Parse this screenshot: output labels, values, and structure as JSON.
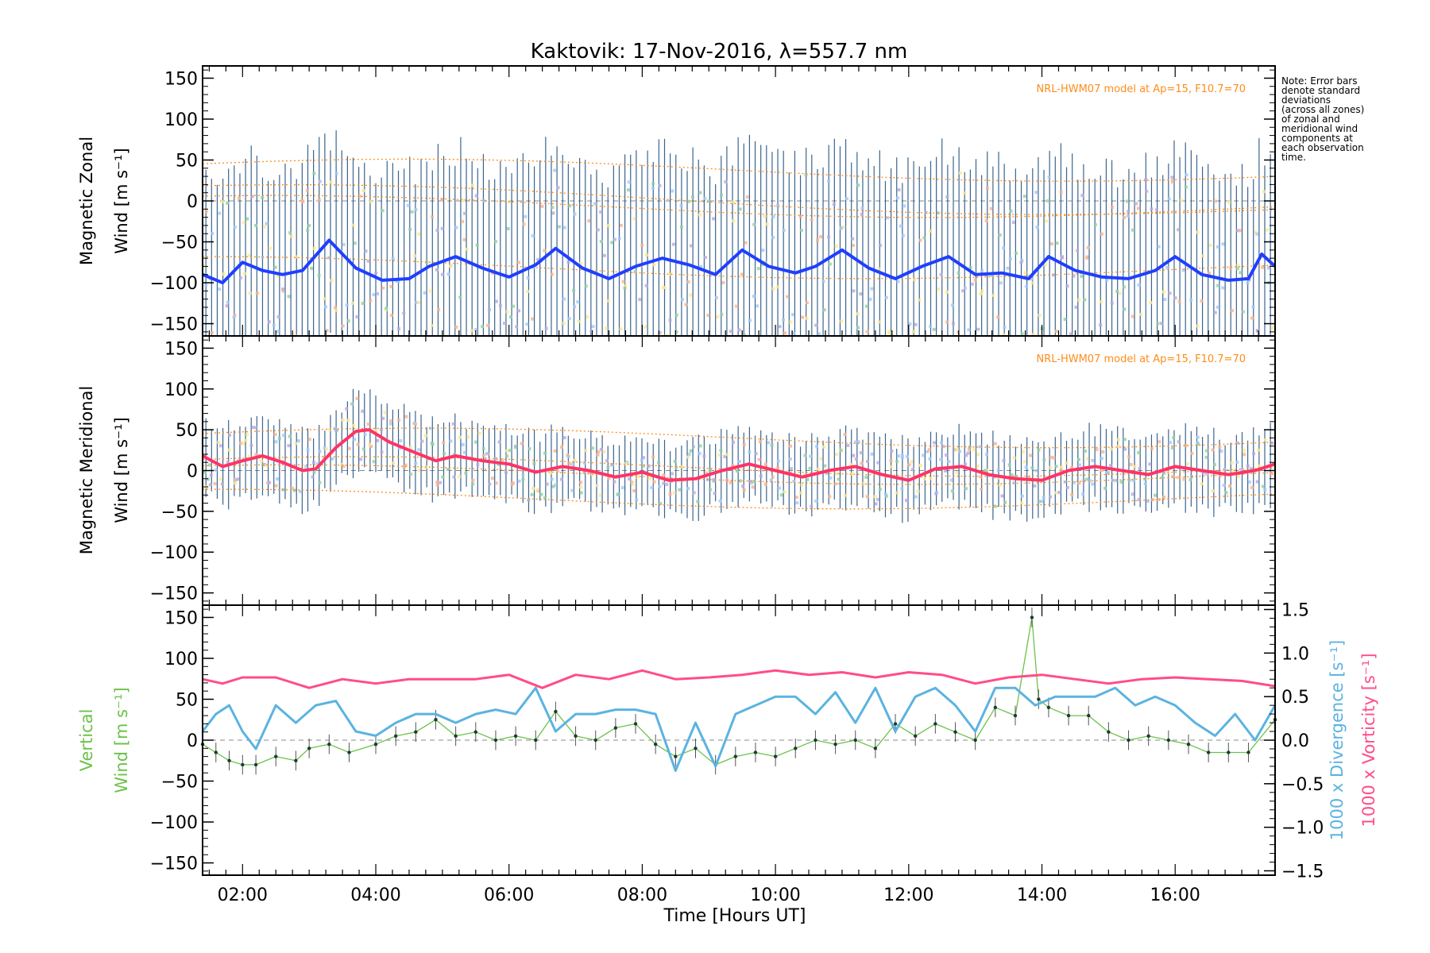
{
  "chart_data": [
    {
      "type": "line",
      "title": "Kaktovik: 17-Nov-2016, λ=557.7 nm",
      "panel": "zonal",
      "ylabel_line1": "Magnetic Zonal",
      "ylabel_line2": "Wind [m s⁻¹]",
      "ylim": [
        -165,
        165
      ],
      "xlim": [
        1.4,
        17.5
      ],
      "yticks": [
        150,
        100,
        50,
        0,
        -50,
        -100,
        -150
      ],
      "model_label": "NRL-HWM07 model at Ap=15, F10.7=70",
      "series": [
        {
          "color": "#1f3fff",
          "x": [
            1.4,
            1.7,
            2.0,
            2.3,
            2.6,
            2.9,
            3.3,
            3.7,
            4.1,
            4.5,
            4.8,
            5.2,
            5.6,
            6.0,
            6.4,
            6.7,
            7.1,
            7.5,
            7.9,
            8.3,
            8.7,
            9.1,
            9.5,
            9.9,
            10.3,
            10.6,
            11.0,
            11.4,
            11.8,
            12.2,
            12.6,
            13.0,
            13.4,
            13.8,
            14.1,
            14.5,
            14.9,
            15.3,
            15.7,
            16.0,
            16.4,
            16.8,
            17.1,
            17.3,
            17.5
          ],
          "y": [
            -90,
            -100,
            -75,
            -85,
            -90,
            -85,
            -48,
            -82,
            -97,
            -95,
            -80,
            -68,
            -82,
            -93,
            -78,
            -58,
            -82,
            -95,
            -80,
            -70,
            -78,
            -90,
            -60,
            -80,
            -88,
            -80,
            -60,
            -82,
            -95,
            -80,
            -68,
            -90,
            -88,
            -95,
            -68,
            -85,
            -93,
            -95,
            -85,
            -68,
            -90,
            -97,
            -95,
            -65,
            -80
          ]
        }
      ]
    },
    {
      "type": "line",
      "panel": "meridional",
      "ylabel_line1": "Magnetic Meridional",
      "ylabel_line2": "Wind [m s⁻¹]",
      "ylim": [
        -165,
        165
      ],
      "xlim": [
        1.4,
        17.5
      ],
      "yticks": [
        150,
        100,
        50,
        0,
        -50,
        -100,
        -150
      ],
      "model_label": "NRL-HWM07 model at Ap=15, F10.7=70",
      "series": [
        {
          "color": "#ff3366",
          "x": [
            1.4,
            1.7,
            2.0,
            2.3,
            2.6,
            2.9,
            3.1,
            3.4,
            3.7,
            3.9,
            4.2,
            4.5,
            4.9,
            5.2,
            5.6,
            6.0,
            6.4,
            6.8,
            7.2,
            7.6,
            8.0,
            8.4,
            8.8,
            9.2,
            9.6,
            10.0,
            10.4,
            10.8,
            11.2,
            11.6,
            12.0,
            12.4,
            12.8,
            13.2,
            13.6,
            14.0,
            14.4,
            14.8,
            15.2,
            15.6,
            16.0,
            16.4,
            16.8,
            17.2,
            17.5
          ],
          "y": [
            18,
            5,
            12,
            18,
            10,
            0,
            2,
            28,
            48,
            50,
            35,
            25,
            12,
            18,
            12,
            8,
            -2,
            5,
            0,
            -8,
            -2,
            -12,
            -10,
            0,
            8,
            0,
            -8,
            0,
            5,
            -5,
            -12,
            2,
            5,
            -5,
            -10,
            -12,
            0,
            5,
            0,
            -5,
            5,
            0,
            -5,
            0,
            8
          ]
        }
      ]
    },
    {
      "type": "line",
      "panel": "vertical",
      "ylabel_line1": "Vertical",
      "ylabel_line2": "Wind [m s⁻¹]",
      "y2label_line1": "1000 x Divergence [s⁻¹]",
      "y2label_line2": "1000 x Vorticity [s⁻¹]",
      "xlabel": "Time [Hours UT]",
      "xticks": [
        "02:00",
        "04:00",
        "06:00",
        "08:00",
        "10:00",
        "12:00",
        "14:00",
        "16:00"
      ],
      "xtick_values": [
        2,
        4,
        6,
        8,
        10,
        12,
        14,
        16
      ],
      "ylim": [
        -165,
        165
      ],
      "y2lim": [
        -1.55,
        1.55
      ],
      "xlim": [
        1.4,
        17.5
      ],
      "yticks": [
        150,
        100,
        50,
        0,
        -50,
        -100,
        -150
      ],
      "y2ticks": [
        "1.5",
        "1.0",
        "0.5",
        "0.0",
        "-0.5",
        "-1.0",
        "-1.5"
      ],
      "y2tick_values": [
        1.5,
        1.0,
        0.5,
        0.0,
        -0.5,
        -1.0,
        -1.5
      ],
      "series": [
        {
          "axis": "left",
          "color": "#6cc24a",
          "x": [
            1.4,
            1.6,
            1.8,
            2.0,
            2.2,
            2.5,
            2.8,
            3.0,
            3.3,
            3.6,
            4.0,
            4.3,
            4.6,
            4.9,
            5.2,
            5.5,
            5.8,
            6.1,
            6.4,
            6.7,
            7.0,
            7.3,
            7.6,
            7.9,
            8.2,
            8.5,
            8.8,
            9.1,
            9.4,
            9.7,
            10.0,
            10.3,
            10.6,
            10.9,
            11.2,
            11.5,
            11.8,
            12.1,
            12.4,
            12.7,
            13.0,
            13.3,
            13.6,
            13.85,
            13.95,
            14.1,
            14.4,
            14.7,
            15.0,
            15.3,
            15.6,
            15.9,
            16.2,
            16.5,
            16.8,
            17.1,
            17.5
          ],
          "y": [
            -5,
            -15,
            -25,
            -30,
            -30,
            -20,
            -25,
            -10,
            -5,
            -15,
            -5,
            5,
            10,
            25,
            5,
            10,
            0,
            5,
            0,
            35,
            5,
            0,
            15,
            20,
            -5,
            -20,
            -10,
            -30,
            -20,
            -15,
            -20,
            -10,
            0,
            -5,
            0,
            -10,
            20,
            5,
            20,
            10,
            0,
            40,
            30,
            150,
            50,
            40,
            30,
            30,
            10,
            0,
            5,
            0,
            -5,
            -15,
            -15,
            -15,
            25
          ]
        },
        {
          "axis": "right",
          "color": "#5bb3e0",
          "x": [
            1.4,
            1.6,
            1.8,
            2.0,
            2.2,
            2.5,
            2.8,
            3.1,
            3.4,
            3.7,
            4.0,
            4.3,
            4.6,
            4.9,
            5.2,
            5.5,
            5.8,
            6.1,
            6.4,
            6.7,
            7.0,
            7.3,
            7.6,
            7.9,
            8.2,
            8.5,
            8.8,
            9.1,
            9.4,
            9.7,
            10.0,
            10.3,
            10.6,
            10.9,
            11.2,
            11.5,
            11.8,
            12.1,
            12.4,
            12.7,
            13.0,
            13.3,
            13.6,
            13.9,
            14.2,
            14.5,
            14.8,
            15.1,
            15.4,
            15.7,
            16.0,
            16.3,
            16.6,
            16.9,
            17.2,
            17.5
          ],
          "y": [
            0.1,
            0.3,
            0.4,
            0.1,
            -0.1,
            0.4,
            0.2,
            0.4,
            0.45,
            0.1,
            0.05,
            0.2,
            0.3,
            0.3,
            0.2,
            0.3,
            0.35,
            0.3,
            0.6,
            0.1,
            0.3,
            0.3,
            0.35,
            0.35,
            0.3,
            -0.35,
            0.2,
            -0.3,
            0.3,
            0.4,
            0.5,
            0.5,
            0.3,
            0.55,
            0.2,
            0.6,
            0.1,
            0.5,
            0.6,
            0.4,
            0.1,
            0.6,
            0.6,
            0.4,
            0.5,
            0.5,
            0.5,
            0.6,
            0.4,
            0.5,
            0.4,
            0.2,
            0.05,
            0.3,
            0.0,
            0.4
          ]
        },
        {
          "axis": "right",
          "color": "#ff4d88",
          "x": [
            1.4,
            1.7,
            2.0,
            2.5,
            3.0,
            3.5,
            4.0,
            4.5,
            5.0,
            5.5,
            6.0,
            6.5,
            7.0,
            7.5,
            8.0,
            8.5,
            9.0,
            9.5,
            10.0,
            10.5,
            11.0,
            11.5,
            12.0,
            12.5,
            13.0,
            13.5,
            14.0,
            14.5,
            15.0,
            15.5,
            16.0,
            16.5,
            17.0,
            17.5
          ],
          "y": [
            0.7,
            0.65,
            0.72,
            0.72,
            0.6,
            0.7,
            0.65,
            0.7,
            0.7,
            0.7,
            0.75,
            0.6,
            0.75,
            0.7,
            0.8,
            0.7,
            0.72,
            0.75,
            0.8,
            0.75,
            0.78,
            0.72,
            0.78,
            0.75,
            0.65,
            0.72,
            0.75,
            0.7,
            0.65,
            0.7,
            0.72,
            0.7,
            0.68,
            0.62
          ]
        }
      ]
    }
  ],
  "note": {
    "lines": [
      "Note: Error bars",
      "denote standard",
      "deviations",
      "(across all zones)",
      "of zonal and",
      "meridional wind",
      "components at",
      "each observation",
      "time."
    ]
  },
  "colors": {
    "axis": "#000000",
    "model": "#ff8c1a",
    "errorbar": "#1a4a7a",
    "zero_line": "#888888",
    "vertical_label": "#6cc24a",
    "divergence_label": "#5bb3e0",
    "vorticity_label": "#ff4d88"
  }
}
